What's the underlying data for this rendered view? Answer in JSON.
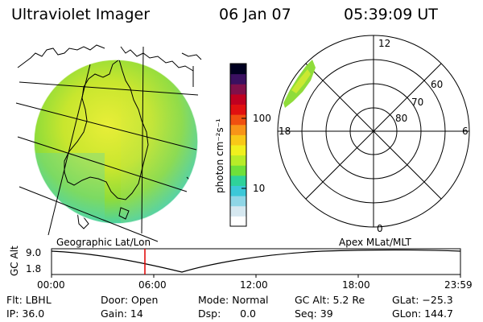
{
  "header": {
    "title": "Ultraviolet Imager",
    "date": "06 Jan 07",
    "time": "05:39:09 UT"
  },
  "colorbar": {
    "unit_label": "photon cm⁻²s⁻¹",
    "ticks": [
      "100",
      "10"
    ],
    "colors": [
      "#ffffff",
      "#d6e8f0",
      "#8fd6e6",
      "#3cc8d8",
      "#2fd29a",
      "#6fe03a",
      "#b8ec28",
      "#f0f01e",
      "#f8c818",
      "#f89418",
      "#f05010",
      "#e01010",
      "#c00020",
      "#80104a",
      "#3a1060",
      "#000020"
    ]
  },
  "polar": {
    "ring_labels": [
      "80",
      "70",
      "60"
    ],
    "clock_labels": {
      "top": "12",
      "bottom": "0",
      "left": "18",
      "right": "6"
    }
  },
  "bottom": {
    "left_label": "Geographic Lat/Lon",
    "right_label": "Apex MLat/MLT",
    "axis_label": "GC Alt",
    "y_ticks": [
      "9.0",
      "1.8"
    ],
    "x_ticks": [
      "00:00",
      "06:00",
      "12:00",
      "18:00",
      "23:59"
    ]
  },
  "info": {
    "flt": "Flt: LBHL",
    "door": "Door: Open",
    "mode": "Mode: Normal",
    "gcalt": "GC Alt: 5.2 Re",
    "glat": "GLat: −25.3",
    "ip": "IP: 36.0",
    "gain": "Gain: 14",
    "dsp": "Dsp:      0.0",
    "seq": "Seq: 39",
    "glon": "GLon: 144.7"
  }
}
